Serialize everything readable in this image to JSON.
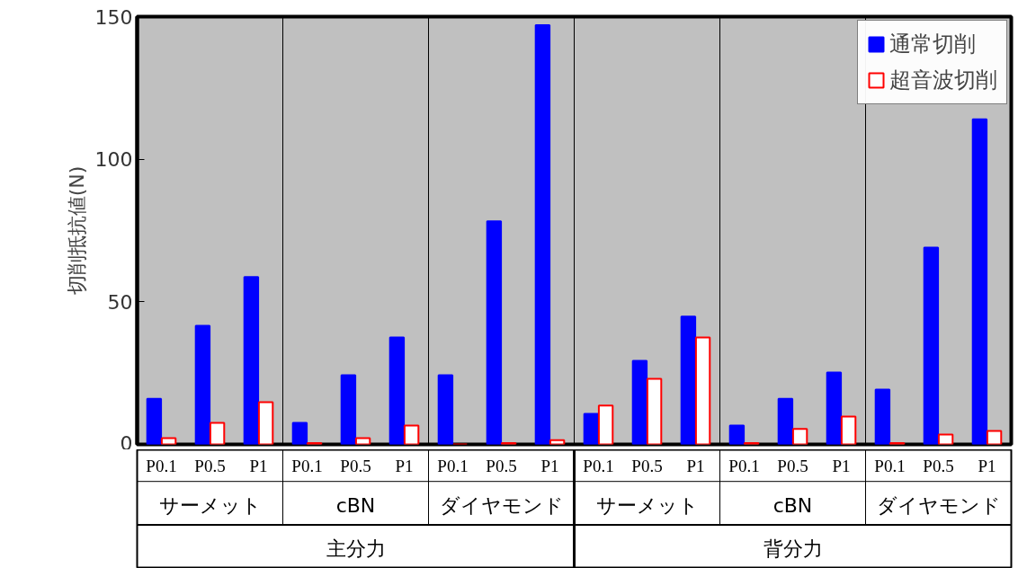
{
  "chart_data": {
    "type": "bar",
    "ylabel": "切削抵抗値(N)",
    "categories": [
      "P0.1",
      "P0.5",
      "P1",
      "P0.1",
      "P0.5",
      "P1",
      "P0.1",
      "P0.5",
      "P1",
      "P0.1",
      "P0.5",
      "P1",
      "P0.1",
      "P0.5",
      "P1",
      "P0.1",
      "P0.5",
      "P1"
    ],
    "series": [
      {
        "name": "通常切削",
        "color": "#0000ff",
        "values": [
          16,
          41.6,
          58.7,
          7.6,
          24.3,
          37.5,
          24.3,
          78.2,
          147,
          10.7,
          29.3,
          44.8,
          6.6,
          16,
          25.2,
          19.2,
          69,
          114
        ]
      },
      {
        "name": "超音波切削",
        "color": "#ff0000",
        "values": [
          2.2,
          7.6,
          14.8,
          0.5,
          2.2,
          6.6,
          0,
          0.5,
          1.5,
          13.6,
          23,
          37.5,
          0.5,
          5.4,
          9.8,
          0.5,
          3.5,
          4.7
        ]
      }
    ],
    "annotations": [
      "サーメット",
      "cBN",
      "ダイヤモンド",
      "サーメット",
      "cBN",
      "ダイヤモンド",
      "主分力",
      "背分力"
    ],
    "ylim": [
      0,
      150
    ],
    "yticks": [
      0,
      50,
      100,
      150
    ],
    "legend": "top right",
    "grid": false
  }
}
